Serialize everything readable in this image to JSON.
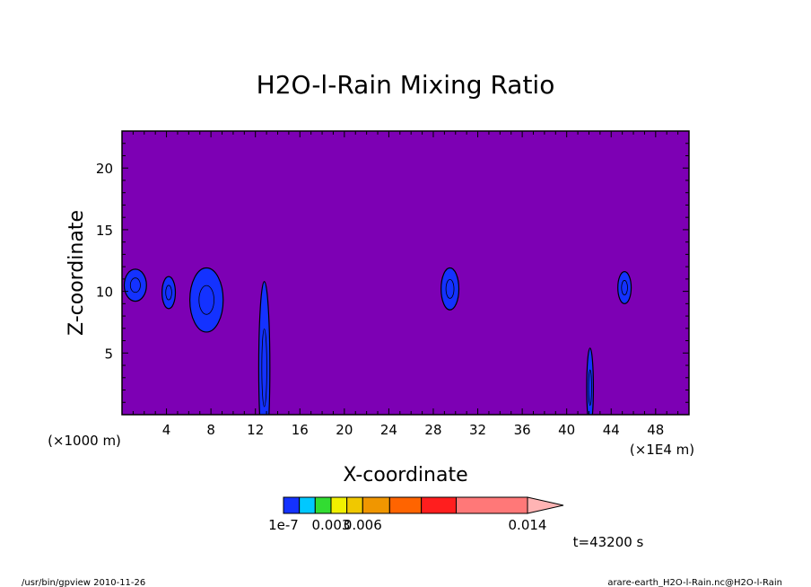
{
  "chart_data": {
    "type": "heatmap",
    "title": "H2O-l-Rain Mixing Ratio",
    "xlabel": "X-coordinate",
    "ylabel": "Z-coordinate",
    "x_unit_label": "(×1000 m)",
    "x_unit_label2": "(×1E4 m)",
    "xlim": [
      0,
      51
    ],
    "ylim": [
      0,
      23
    ],
    "x_ticks": [
      4,
      8,
      12,
      16,
      20,
      24,
      28,
      32,
      36,
      40,
      44,
      48
    ],
    "y_ticks": [
      5,
      10,
      15,
      20
    ],
    "background_color": "#7d00b4",
    "colorbar": {
      "colors": [
        "#1432ff",
        "#00c8ff",
        "#32dc32",
        "#f0f000",
        "#f0c800",
        "#f09600",
        "#ff6400",
        "#ff1e1e",
        "#ff7878"
      ],
      "extend_color": "#ffb4b4",
      "tick_labels": [
        "1e-7",
        "0.003",
        "0.006",
        "0.014"
      ]
    },
    "features": [
      {
        "x": 1.2,
        "z": 10.5,
        "rx": 1.0,
        "rz": 1.3,
        "level": 0
      },
      {
        "x": 4.2,
        "z": 9.9,
        "rx": 0.6,
        "rz": 1.3,
        "level": 0
      },
      {
        "x": 7.6,
        "z": 9.3,
        "rx": 1.5,
        "rz": 2.6,
        "level": 0
      },
      {
        "x": 12.8,
        "z": 3.8,
        "rx": 0.5,
        "rz": 7.0,
        "level": 0
      },
      {
        "x": 29.5,
        "z": 10.2,
        "rx": 0.8,
        "rz": 1.7,
        "level": 0
      },
      {
        "x": 42.1,
        "z": 2.2,
        "rx": 0.3,
        "rz": 3.2,
        "level": 0
      },
      {
        "x": 45.2,
        "z": 10.3,
        "rx": 0.6,
        "rz": 1.3,
        "level": 0
      }
    ],
    "grid": false
  },
  "time_label": "t=43200 s",
  "footer_left": "/usr/bin/gpview   2010-11-26",
  "footer_right": "arare-earth_H2O-l-Rain.nc@H2O-l-Rain"
}
